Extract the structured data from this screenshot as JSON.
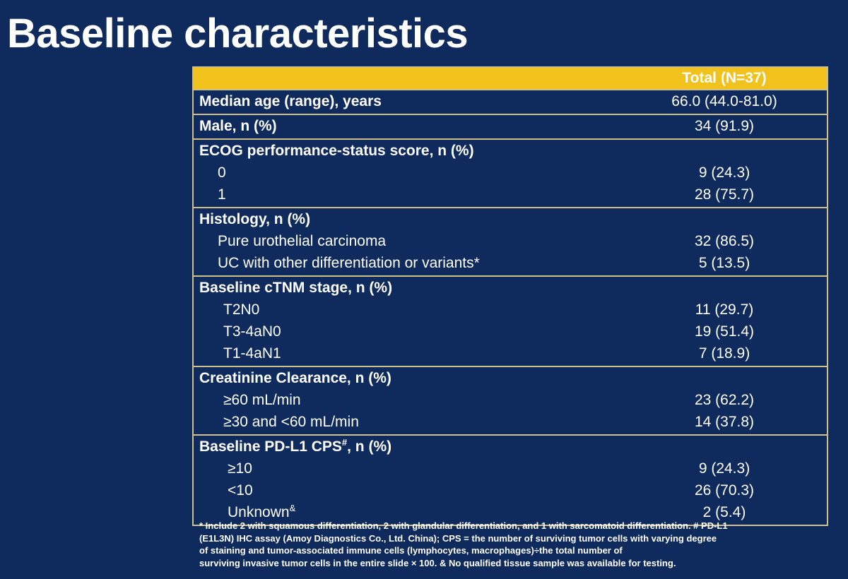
{
  "title": "Baseline characteristics",
  "table": {
    "header": "Total (N=37)",
    "groups": [
      {
        "rows": [
          {
            "label": "Median age (range), years",
            "value": "66.0 (44.0-81.0)"
          }
        ]
      },
      {
        "rows": [
          {
            "label": "Male, n (%)",
            "value": "34 (91.9)"
          }
        ]
      },
      {
        "rows": [
          {
            "label": "ECOG performance-status score, n (%)",
            "value": ""
          },
          {
            "label": "0",
            "value": "9 (24.3)"
          },
          {
            "label": "1",
            "value": "28 (75.7)"
          }
        ]
      },
      {
        "rows": [
          {
            "label": "Histology, n (%)",
            "value": ""
          },
          {
            "label": "Pure urothelial carcinoma",
            "value": "32 (86.5)"
          },
          {
            "label": "UC with other differentiation or variants*",
            "value": "5 (13.5)"
          }
        ]
      },
      {
        "rows": [
          {
            "label": "Baseline cTNM stage, n (%)",
            "value": ""
          },
          {
            "label": "T2N0",
            "value": "11 (29.7)"
          },
          {
            "label": "T3-4aN0",
            "value": "19 (51.4)"
          },
          {
            "label": "T1-4aN1",
            "value": "7 (18.9)"
          }
        ]
      },
      {
        "rows": [
          {
            "label": "Creatinine Clearance, n (%)",
            "value": ""
          },
          {
            "label": "≥60 mL/min",
            "value": "23 (62.2)"
          },
          {
            "label": "≥30 and <60 mL/min",
            "value": "14 (37.8)"
          }
        ]
      },
      {
        "rows": [
          {
            "label": "Baseline PD-L1 CPS",
            "sup": "#",
            "label_suffix": ", n (%)",
            "value": ""
          },
          {
            "label": "≥10",
            "value": "9 (24.3)"
          },
          {
            "label": "<10",
            "value": "26 (70.3)"
          },
          {
            "label": "Unknown",
            "sup": "&",
            "value": "2 (5.4)"
          }
        ]
      }
    ]
  },
  "footnote": {
    "line1": "* Include 2 with squamous differentiation,  2 with glandular differentiation, and 1 with sarcomatoid differentiation. # PD-L1",
    "line2": "(E1L3N) IHC assay (Amoy Diagnostics Co., Ltd. China); CPS = the number of surviving tumor cells with varying degree",
    "line3": "of staining and tumor-associated immune cells (lymphocytes, macrophages)÷the total number of",
    "line4": "surviving invasive tumor cells in the entire slide × 100. & No qualified tissue sample was available for testing."
  }
}
